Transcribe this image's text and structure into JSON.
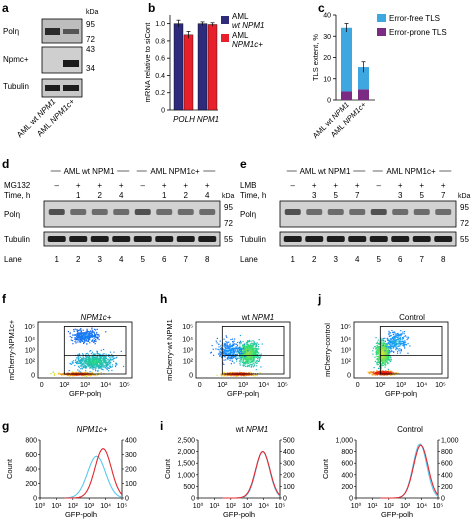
{
  "panels": {
    "a": {
      "letter": "a",
      "kda_label": "kDa",
      "row_labels": [
        "Polη",
        "Npmc+",
        "Tubulin"
      ],
      "markers": [
        "95",
        "72",
        "43",
        "34"
      ],
      "lane_labels": [
        "AML wt NPM1",
        "AML NPM1c+"
      ]
    },
    "b": {
      "letter": "b",
      "legend": [
        "AML wt NPM1",
        "AML NPM1c+"
      ],
      "legend_parts": [
        [
          "AML",
          "wt NPM1"
        ],
        [
          "AML",
          "NPM1c+"
        ]
      ],
      "colors": [
        "#2e2b7c",
        "#e8202b"
      ]
    },
    "c": {
      "letter": "c",
      "legend": [
        "Error-free TLS",
        "Error-prone TLS"
      ],
      "colors": [
        "#3ea7e0",
        "#7c2b83"
      ]
    },
    "d": {
      "letter": "d",
      "header": [
        "AML wt NPM1",
        "AML NPM1c+"
      ],
      "rows": [
        "MG132",
        "Time, h"
      ],
      "treatment": [
        "–",
        "+",
        "+",
        "+",
        "–",
        "+",
        "+",
        "+"
      ],
      "time": [
        "",
        "1",
        "2",
        "4",
        "",
        "1",
        "2",
        "4"
      ],
      "bands": [
        "Polη",
        "Tubulin"
      ],
      "markers": [
        "95",
        "72",
        "55"
      ],
      "kda_label": "kDa",
      "lane_label": "Lane",
      "lanes": [
        "1",
        "2",
        "3",
        "4",
        "5",
        "6",
        "7",
        "8"
      ]
    },
    "e": {
      "letter": "e",
      "header": [
        "AML wt NPM1",
        "AML NPM1c+"
      ],
      "rows": [
        "LMB",
        "Time, h"
      ],
      "treatment": [
        "–",
        "+",
        "+",
        "+",
        "–",
        "+",
        "+",
        "+"
      ],
      "time": [
        "",
        "3",
        "5",
        "7",
        "",
        "3",
        "5",
        "7"
      ],
      "bands": [
        "Polη",
        "Tubulin"
      ],
      "markers": [
        "95",
        "72",
        "55"
      ],
      "kda_label": "kDa",
      "lane_label": "Lane",
      "lanes": [
        "1",
        "2",
        "3",
        "4",
        "5",
        "6",
        "7",
        "8"
      ]
    },
    "f": {
      "letter": "f",
      "title": "NPM1c+",
      "ylabel": "mCherry-NPM1c+",
      "xlabel": "GFP-polη"
    },
    "h": {
      "letter": "h",
      "title_prefix": "wt",
      "title_it": "NPM1",
      "ylabel": "mCherry-wt NPM1",
      "xlabel": "GFP-polη"
    },
    "j": {
      "letter": "j",
      "title": "Control",
      "ylabel": "mCherry-control",
      "xlabel": "GFP-polη"
    },
    "g": {
      "letter": "g",
      "title": "NPM1c+",
      "ylabel": "Count",
      "xlabel": "GFP-polh"
    },
    "i": {
      "letter": "i",
      "title_prefix": "wt",
      "title_it": "NPM1",
      "ylabel": "Count",
      "xlabel": "GFP-polh"
    },
    "k": {
      "letter": "k",
      "title": "Control",
      "ylabel": "Count",
      "xlabel": "GFP-polh"
    },
    "hist_colors": [
      "#5bc8ee",
      "#e0282f"
    ]
  },
  "chart_data": [
    {
      "panel": "b",
      "type": "bar",
      "categories": [
        "POLH",
        "NPM1"
      ],
      "series": [
        {
          "name": "AML wt NPM1",
          "values": [
            1.0,
            1.0
          ],
          "errors": [
            0.04,
            0.02
          ]
        },
        {
          "name": "AML NPM1c+",
          "values": [
            0.87,
            0.99
          ],
          "errors": [
            0.04,
            0.02
          ]
        }
      ],
      "ylabel": "mRNA relative to siCont",
      "yticks": [
        "0",
        "0.2",
        "0.4",
        "0.6",
        "0.8",
        "1.0"
      ],
      "ylim": [
        0,
        1.1
      ],
      "xlabel": ""
    },
    {
      "panel": "c",
      "type": "bar",
      "stacked": true,
      "categories": [
        "AML wt NPM1",
        "AML NPM1c+"
      ],
      "series": [
        {
          "name": "Error-free TLS",
          "values": [
            30,
            10.5
          ],
          "errors": [
            2,
            2.5
          ]
        },
        {
          "name": "Error-prone TLS",
          "values": [
            4,
            5
          ],
          "errors": [
            0,
            0
          ]
        }
      ],
      "ylabel": "TLS extent, %",
      "yticks": [
        "0",
        "10",
        "20",
        "30",
        "40"
      ],
      "ylim": [
        0,
        40
      ],
      "xlabel": ""
    },
    {
      "panel": "g",
      "type": "line",
      "x_ticks": [
        "10⁰",
        "10¹",
        "10²",
        "10³",
        "10⁴",
        "10⁵"
      ],
      "ylabel": "Count",
      "left_ticks": [
        "0",
        "200",
        "400",
        "600",
        "800"
      ],
      "right_ticks": [
        "0",
        "100",
        "200",
        "300",
        "400"
      ],
      "xlabel": "GFP-polh",
      "series": [
        {
          "name": "",
          "peak_log": 3.45,
          "width": 0.55,
          "height": 0.72
        },
        {
          "name": "",
          "peak_log": 3.85,
          "width": 0.5,
          "height": 0.85
        }
      ]
    },
    {
      "panel": "i",
      "type": "line",
      "x_ticks": [
        "10⁰",
        "10¹",
        "10²",
        "10³",
        "10⁴",
        "10⁵"
      ],
      "ylabel": "Count",
      "left_ticks": [
        "0",
        "500",
        "1,000",
        "1,500",
        "2,000",
        "2,500"
      ],
      "right_ticks": [
        "0",
        "100",
        "200",
        "300",
        "400",
        "500"
      ],
      "xlabel": "GFP-polh",
      "series": [
        {
          "name": "",
          "peak_log": 3.95,
          "width": 0.42,
          "height": 0.8
        },
        {
          "name": "",
          "peak_log": 3.95,
          "width": 0.44,
          "height": 0.8
        }
      ]
    },
    {
      "panel": "k",
      "type": "line",
      "x_ticks": [
        "10⁰",
        "10¹",
        "10²",
        "10³",
        "10⁴",
        "10⁵"
      ],
      "ylabel": "Count",
      "left_ticks": [
        "0",
        "200",
        "400",
        "600",
        "800",
        "1,000"
      ],
      "right_ticks": [
        "0",
        "200",
        "400",
        "600",
        "800",
        "1,000"
      ],
      "xlabel": "GFP-polh",
      "series": [
        {
          "name": "",
          "peak_log": 3.9,
          "width": 0.42,
          "height": 0.93
        },
        {
          "name": "",
          "peak_log": 3.95,
          "width": 0.44,
          "height": 0.91
        }
      ]
    },
    {
      "panel": "f",
      "type": "scatter",
      "x_ticks": [
        "0",
        "10²",
        "10³",
        "10⁴",
        "10⁵"
      ],
      "y_ticks": [
        "0",
        "10²",
        "10³",
        "10⁴",
        "10⁵"
      ],
      "xlabel": "GFP-polη",
      "ylabel": "mCherry-NPM1c+"
    },
    {
      "panel": "h",
      "type": "scatter",
      "x_ticks": [
        "0",
        "10²",
        "10³",
        "10⁴",
        "10⁵"
      ],
      "y_ticks": [
        "0",
        "10²",
        "10³",
        "10⁴",
        "10⁵"
      ],
      "xlabel": "GFP-polη",
      "ylabel": "mCherry-wt NPM1"
    },
    {
      "panel": "j",
      "type": "scatter",
      "x_ticks": [
        "0",
        "10²",
        "10³",
        "10⁴",
        "10⁵"
      ],
      "y_ticks": [
        "0",
        "10²",
        "10³",
        "10⁴",
        "10⁵"
      ],
      "xlabel": "GFP-polη",
      "ylabel": "mCherry-control"
    }
  ]
}
